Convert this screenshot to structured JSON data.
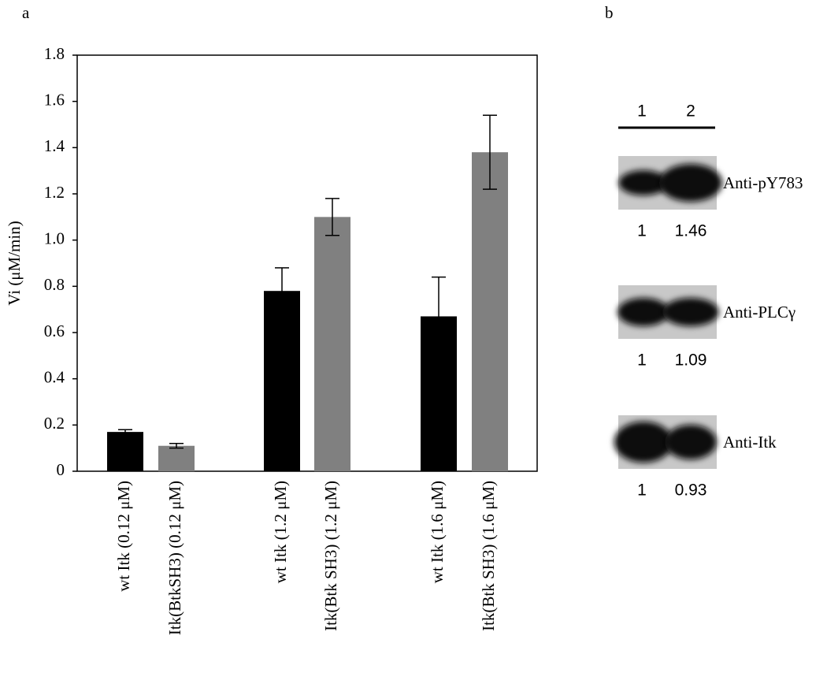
{
  "panel_labels": [
    "a",
    "b"
  ],
  "chart_data": {
    "type": "bar",
    "y_label": "Vi (μM/min)",
    "categories": [
      "wt Itk (0.12 μM)",
      "Itk(BtkSH3) (0.12 μM)",
      "wt Itk (1.2 μM)",
      "Itk(Btk SH3) (1.2 μM)",
      "wt Itk (1.6 μM)",
      "Itk(Btk SH3) (1.6 μM)"
    ],
    "values": [
      0.17,
      0.11,
      0.78,
      1.1,
      0.67,
      1.38
    ],
    "errors": [
      0.01,
      0.01,
      0.1,
      0.08,
      0.17,
      0.16
    ],
    "colors": [
      "#000000",
      "#808080",
      "#000000",
      "#808080",
      "#000000",
      "#808080"
    ],
    "ylim": [
      0,
      1.8
    ],
    "yticks": [
      0,
      0.2,
      0.4,
      0.6,
      0.8,
      {
        "value": 1,
        "label": "1.0"
      },
      1.2,
      1.4,
      1.6,
      1.8
    ]
  },
  "blot_panel": {
    "lanes": [
      "1",
      "2"
    ],
    "blots": [
      {
        "label": "Anti-pY783",
        "quantification": [
          1,
          1.46
        ]
      },
      {
        "label": "Anti-PLCγ",
        "quantification": [
          1,
          1.09
        ]
      },
      {
        "label": "Anti-Itk",
        "quantification": [
          1,
          0.93
        ]
      }
    ]
  }
}
